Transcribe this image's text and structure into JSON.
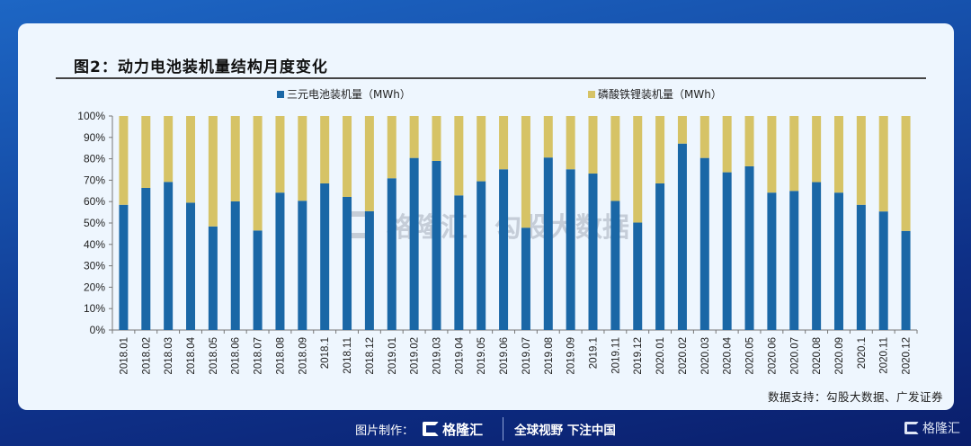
{
  "card": {
    "title": "图2：动力电池装机量结构月度变化",
    "source": "数据支持：勾股大数据、广发证券"
  },
  "watermark": {
    "brand": "格隆汇",
    "text": "勾股大数据"
  },
  "footer": {
    "made_by_label": "图片制作：",
    "brand": "格隆汇",
    "slogan": "全球视野 下注中国",
    "corner_brand": "格隆汇"
  },
  "colors": {
    "ternary": "#1a67a6",
    "lfp": "#d6c366"
  },
  "chart_data": {
    "type": "bar",
    "stacked": true,
    "percent": true,
    "title": "动力电池装机量结构月度变化",
    "xlabel": "",
    "ylabel": "",
    "ylim": [
      0,
      100
    ],
    "yticks": [
      "0%",
      "10%",
      "20%",
      "30%",
      "40%",
      "50%",
      "60%",
      "70%",
      "80%",
      "90%",
      "100%"
    ],
    "legend_position": "top",
    "categories": [
      "2018.01",
      "2018.02",
      "2018.03",
      "2018.04",
      "2018.05",
      "2018.06",
      "2018.07",
      "2018.08",
      "2018.09",
      "2018.1",
      "2018.11",
      "2018.12",
      "2019.01",
      "2019.02",
      "2019.03",
      "2019.04",
      "2019.05",
      "2019.06",
      "2019.07",
      "2019.08",
      "2019.09",
      "2019.1",
      "2019.11",
      "2019.12",
      "2020.01",
      "2020.02",
      "2020.03",
      "2020.04",
      "2020.05",
      "2020.06",
      "2020.07",
      "2020.08",
      "2020.09",
      "2020.1",
      "2020.11",
      "2020.12"
    ],
    "series": [
      {
        "name": "三元电池装机量（MWh）",
        "values": [
          58.5,
          66.4,
          69.2,
          59.5,
          48.4,
          60.1,
          46.5,
          64.2,
          60.4,
          68.5,
          62.2,
          55.5,
          70.9,
          80.4,
          79.0,
          62.9,
          69.5,
          75.1,
          47.8,
          80.6,
          75.1,
          73.1,
          60.3,
          50.2,
          68.5,
          87.1,
          80.4,
          73.7,
          76.5,
          64.2,
          65.0,
          69.1,
          64.2,
          58.5,
          55.4,
          46.3
        ]
      },
      {
        "name": "磷酸铁锂装机量（MWh）",
        "values": [
          41.5,
          33.6,
          30.8,
          40.5,
          51.6,
          39.9,
          53.5,
          35.8,
          39.6,
          31.5,
          37.8,
          44.5,
          29.1,
          19.6,
          21.0,
          37.1,
          30.5,
          24.9,
          52.2,
          19.4,
          24.9,
          26.9,
          39.7,
          49.8,
          31.5,
          12.9,
          19.6,
          26.3,
          23.5,
          35.8,
          35.0,
          30.9,
          35.8,
          41.5,
          44.6,
          53.7
        ]
      }
    ]
  }
}
